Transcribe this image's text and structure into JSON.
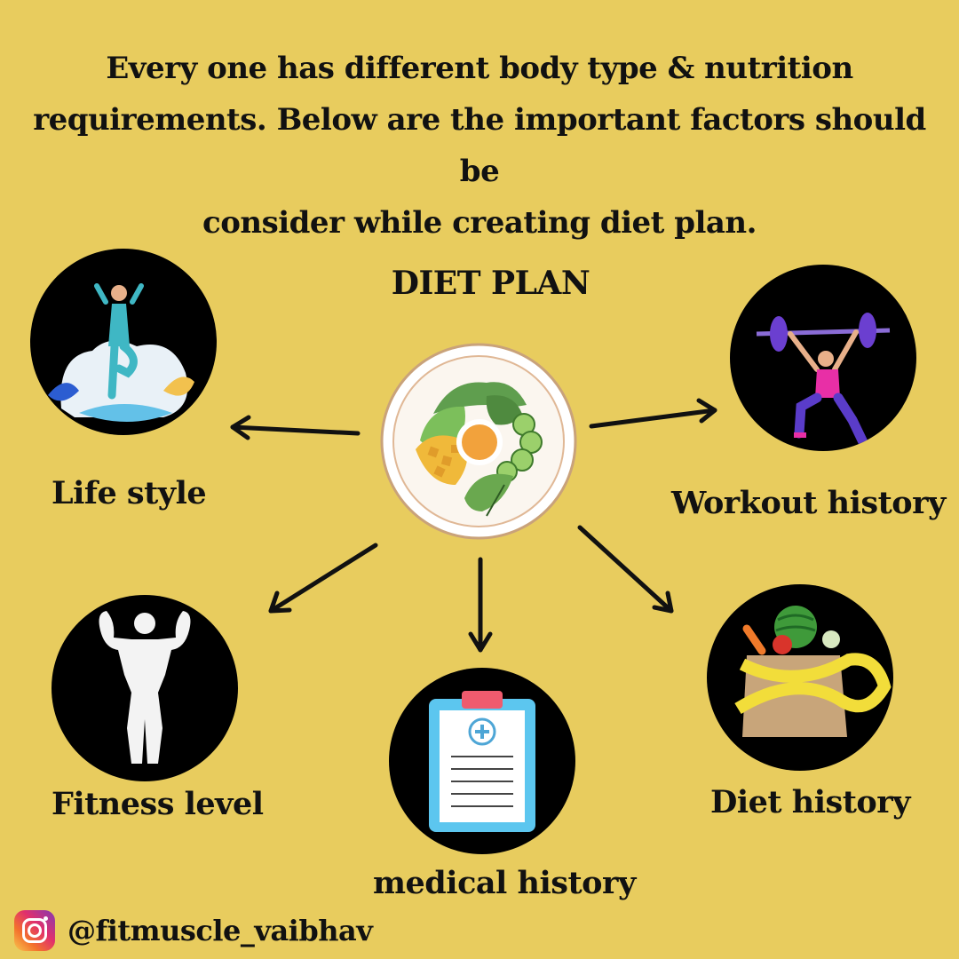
{
  "intro": {
    "line1": "Every one has different body type & nutrition",
    "line2": "requirements. Below are the important factors should be",
    "line3": "consider while creating diet plan."
  },
  "center": {
    "title": "DIET PLAN",
    "icon": "salad-plate-icon"
  },
  "factors": {
    "lifestyle": {
      "label": "Life style",
      "icon": "yoga-woman-icon"
    },
    "workout": {
      "label": "Workout history",
      "icon": "weightlifter-icon"
    },
    "fitness": {
      "label": "Fitness level",
      "icon": "bodybuilder-silhouette-icon"
    },
    "medical": {
      "label": "medical history",
      "icon": "medical-clipboard-icon"
    },
    "diet": {
      "label": "Diet history",
      "icon": "grocery-bag-tape-icon"
    }
  },
  "footer": {
    "handle": "@fitmuscle_vaibhav",
    "icon": "instagram-icon"
  },
  "colors": {
    "background": "#E8CC5E",
    "circle": "#000000",
    "text": "#111111"
  }
}
